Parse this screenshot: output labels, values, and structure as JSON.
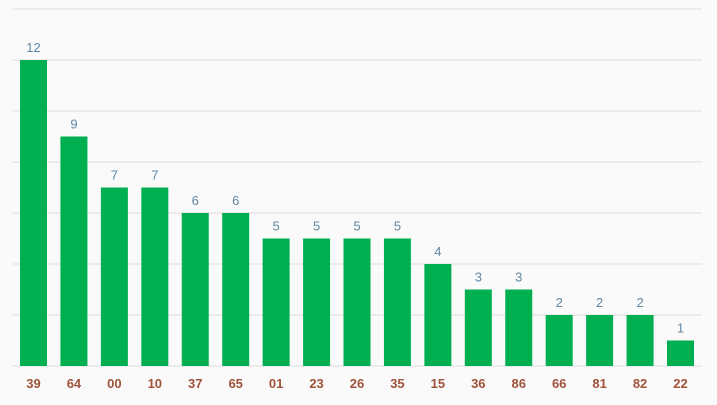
{
  "chart_data": {
    "type": "bar",
    "title": "",
    "xlabel": "",
    "ylabel": "",
    "categories": [
      "39",
      "64",
      "00",
      "10",
      "37",
      "65",
      "01",
      "23",
      "26",
      "35",
      "15",
      "36",
      "86",
      "66",
      "81",
      "82",
      "22"
    ],
    "values": [
      12,
      9,
      7,
      7,
      6,
      6,
      5,
      5,
      5,
      5,
      4,
      3,
      3,
      2,
      2,
      2,
      1
    ],
    "ylim": [
      0,
      14
    ],
    "grid_step": 2,
    "grid": true,
    "bar_color": "#00b050",
    "value_label_color": "#5f87a3",
    "category_label_color": "#a0523a"
  }
}
